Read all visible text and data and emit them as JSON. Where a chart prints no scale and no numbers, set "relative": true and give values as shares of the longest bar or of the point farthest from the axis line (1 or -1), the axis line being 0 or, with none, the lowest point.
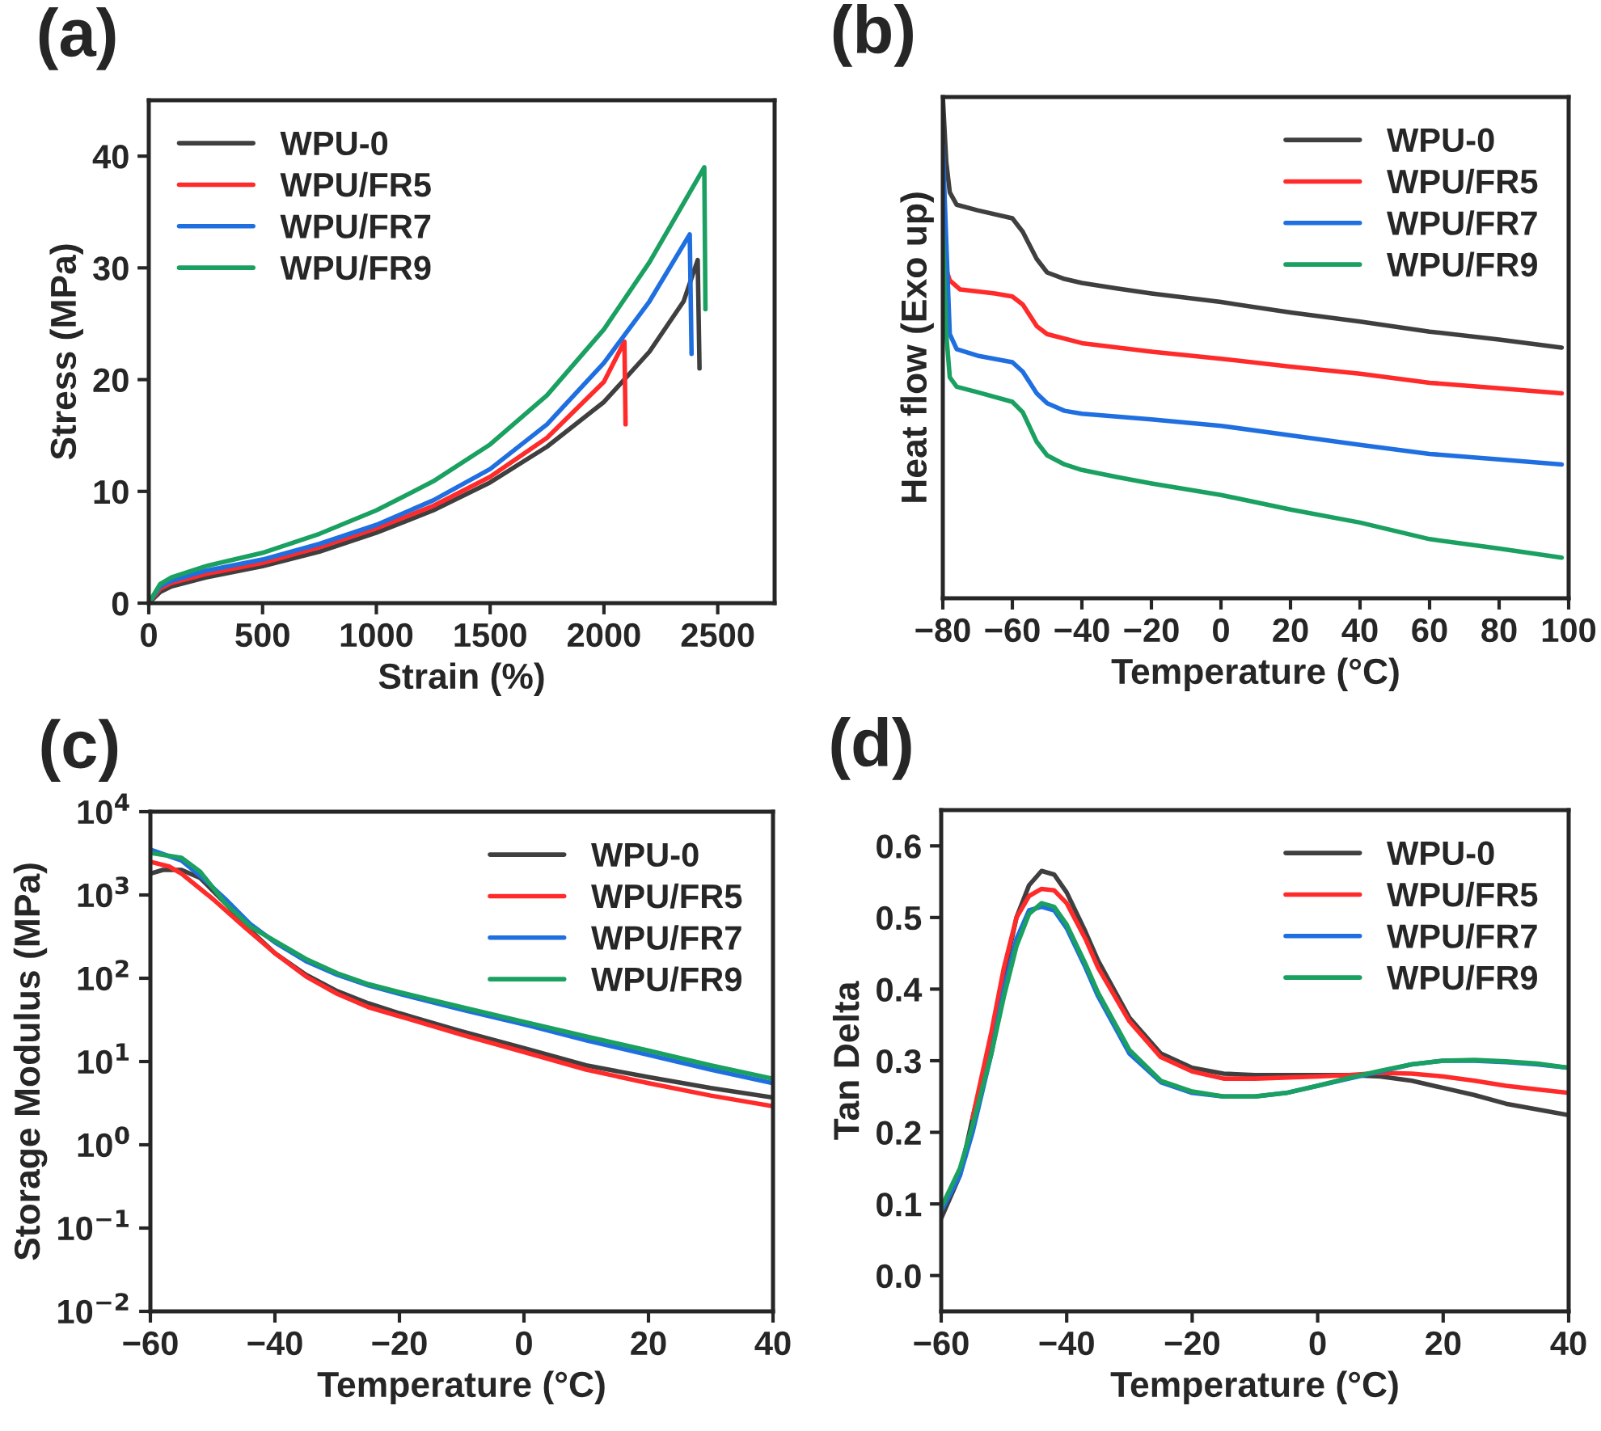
{
  "chart_data": [
    {
      "type": "line",
      "title": "(a)",
      "xlabel": "Strain (%)",
      "ylabel": "Stress (MPa)",
      "xlim": [
        0,
        2750
      ],
      "xticks": [
        0,
        500,
        1000,
        1500,
        2000,
        2500
      ],
      "ylim": [
        0,
        45
      ],
      "yticks": [
        0,
        10,
        20,
        30,
        40
      ],
      "legend": "top left",
      "grid": false,
      "series": [
        {
          "name": "WPU-0",
          "color": "#3f3f3f",
          "x": [
            0,
            50,
            100,
            250,
            500,
            750,
            1000,
            1250,
            1500,
            1750,
            2000,
            2200,
            2350,
            2412,
            2420
          ],
          "values": [
            0,
            1,
            1.5,
            2.3,
            3.3,
            4.6,
            6.3,
            8.3,
            10.8,
            14,
            18,
            22.5,
            27,
            30.7,
            21
          ]
        },
        {
          "name": "WPU/FR5",
          "color": "#ff2a2a",
          "x": [
            0,
            50,
            100,
            250,
            500,
            750,
            1000,
            1250,
            1500,
            1750,
            2000,
            2090,
            2095
          ],
          "values": [
            0,
            1.3,
            1.8,
            2.6,
            3.6,
            5,
            6.7,
            8.7,
            11.3,
            14.8,
            19.8,
            23.4,
            16
          ]
        },
        {
          "name": "WPU/FR7",
          "color": "#1f6fe0",
          "x": [
            0,
            50,
            100,
            250,
            500,
            750,
            1000,
            1250,
            1500,
            1750,
            2000,
            2200,
            2377,
            2385
          ],
          "values": [
            0,
            1.5,
            2,
            2.9,
            3.9,
            5.3,
            7,
            9.2,
            12,
            16,
            21.5,
            27,
            33,
            22.3
          ]
        },
        {
          "name": "WPU/FR9",
          "color": "#1aa060",
          "x": [
            0,
            50,
            100,
            250,
            500,
            750,
            1000,
            1250,
            1500,
            1750,
            2000,
            2200,
            2441,
            2446
          ],
          "values": [
            0,
            1.7,
            2.3,
            3.3,
            4.5,
            6.2,
            8.3,
            10.9,
            14.2,
            18.6,
            24.5,
            30.5,
            39,
            26.3
          ]
        }
      ]
    },
    {
      "type": "line",
      "title": "(b)",
      "xlabel": "Temperature (°C)",
      "ylabel": "Heat flow (Exo up)",
      "relative": true,
      "tick_labels": "x",
      "xlim": [
        -80,
        100
      ],
      "xticks": [
        {
          "value": -80,
          "label": "−80"
        },
        {
          "value": -60,
          "label": "−60"
        },
        {
          "value": -40,
          "label": "−40"
        },
        {
          "value": -20,
          "label": "−20"
        },
        0,
        20,
        40,
        60,
        80,
        100
      ],
      "legend": "top right",
      "grid": false,
      "series": [
        {
          "name": "WPU-0",
          "color": "#3f3f3f",
          "x": [
            -80,
            -79,
            -78,
            -76,
            -70,
            -60,
            -57,
            -53,
            -50,
            -45,
            -40,
            -30,
            -20,
            0,
            20,
            40,
            60,
            80,
            98
          ],
          "values": [
            1.0,
            0.87,
            0.81,
            0.785,
            0.774,
            0.758,
            0.731,
            0.677,
            0.65,
            0.637,
            0.629,
            0.618,
            0.608,
            0.591,
            0.57,
            0.552,
            0.532,
            0.516,
            0.5
          ]
        },
        {
          "name": "WPU/FR5",
          "color": "#ff2a2a",
          "x": [
            -79,
            -78,
            -75,
            -65,
            -60,
            -57,
            -53,
            -50,
            -40,
            -20,
            0,
            20,
            40,
            60,
            80,
            98
          ],
          "values": [
            0.656,
            0.634,
            0.616,
            0.608,
            0.602,
            0.586,
            0.543,
            0.527,
            0.509,
            0.492,
            0.478,
            0.462,
            0.448,
            0.43,
            0.419,
            0.409
          ]
        },
        {
          "name": "WPU/FR7",
          "color": "#1f6fe0",
          "x": [
            -80,
            -79,
            -78,
            -76,
            -70,
            -60,
            -57,
            -53,
            -50,
            -45,
            -40,
            -20,
            0,
            20,
            40,
            60,
            80,
            98
          ],
          "values": [
            0.903,
            0.71,
            0.527,
            0.497,
            0.484,
            0.471,
            0.452,
            0.409,
            0.389,
            0.374,
            0.368,
            0.357,
            0.344,
            0.325,
            0.306,
            0.288,
            0.277,
            0.267
          ]
        },
        {
          "name": "WPU/FR9",
          "color": "#1aa060",
          "x": [
            -80,
            -79,
            -78,
            -76,
            -70,
            -60,
            -57,
            -53,
            -50,
            -45,
            -40,
            -30,
            -20,
            0,
            20,
            40,
            60,
            80,
            98
          ],
          "values": [
            0.737,
            0.527,
            0.441,
            0.422,
            0.411,
            0.392,
            0.371,
            0.312,
            0.285,
            0.267,
            0.256,
            0.242,
            0.229,
            0.206,
            0.177,
            0.151,
            0.118,
            0.099,
            0.081
          ]
        }
      ]
    },
    {
      "type": "line",
      "title": "(c)",
      "xlabel": "Temperature (°C)",
      "ylabel": "Storage Modulus (MPa)",
      "log": "y",
      "xlim": [
        -60,
        40
      ],
      "xticks": [
        {
          "value": -60,
          "label": "−60"
        },
        {
          "value": -40,
          "label": "−40"
        },
        {
          "value": -20,
          "label": "−20"
        },
        0,
        20,
        40
      ],
      "ylim": [
        0.01,
        10000
      ],
      "yticks": [
        {
          "value": 0.01,
          "label": "10$^{−2}$"
        },
        {
          "value": 0.1,
          "label": "10$^{−1}$"
        },
        {
          "value": 1,
          "label": "10$^{0}$"
        },
        {
          "value": 10,
          "label": "10$^{1}$"
        },
        {
          "value": 100,
          "label": "10$^{2}$"
        },
        {
          "value": 1000,
          "label": "10$^{3}$"
        },
        {
          "value": 10000,
          "label": "10$^{4}$"
        }
      ],
      "legend": "top right",
      "grid": false,
      "series": [
        {
          "name": "WPU-0",
          "color": "#3f3f3f",
          "x": [
            -60,
            -58,
            -55,
            -52,
            -48,
            -44,
            -40,
            -35,
            -30,
            -25,
            -20,
            -10,
            0,
            10,
            20,
            30,
            40
          ],
          "values": [
            1800,
            2000,
            2000,
            1600,
            800,
            380,
            200,
            110,
            70,
            50,
            38,
            23,
            14.5,
            9,
            6.5,
            4.8,
            3.7
          ]
        },
        {
          "name": "WPU/FR5",
          "color": "#ff2a2a",
          "x": [
            -60,
            -57,
            -55,
            -50,
            -45,
            -40,
            -35,
            -30,
            -25,
            -20,
            -10,
            0,
            10,
            20,
            30,
            40
          ],
          "values": [
            2500,
            2200,
            1800,
            900,
            420,
            200,
            105,
            65,
            45,
            35,
            21,
            13,
            8,
            5.5,
            3.9,
            2.9
          ]
        },
        {
          "name": "WPU/FR7",
          "color": "#1f6fe0",
          "x": [
            -60,
            -55,
            -52,
            -48,
            -44,
            -40,
            -35,
            -30,
            -25,
            -20,
            -10,
            0,
            10,
            20,
            30,
            40
          ],
          "values": [
            3500,
            2600,
            1700,
            900,
            450,
            270,
            160,
            110,
            82,
            65,
            42,
            28,
            18,
            12,
            8,
            5.5
          ]
        },
        {
          "name": "WPU/FR9",
          "color": "#1aa060",
          "x": [
            -60,
            -55,
            -52,
            -48,
            -44,
            -40,
            -35,
            -30,
            -25,
            -20,
            -10,
            0,
            10,
            20,
            30,
            40
          ],
          "values": [
            3200,
            2800,
            1900,
            800,
            420,
            280,
            170,
            115,
            85,
            68,
            45,
            30,
            20,
            13.5,
            9,
            6.2
          ]
        }
      ]
    },
    {
      "type": "line",
      "title": "(d)",
      "xlabel": "Temperature (°C)",
      "ylabel": "Tan Delta",
      "xlim": [
        -60,
        40
      ],
      "xticks": [
        {
          "value": -60,
          "label": "−60"
        },
        {
          "value": -40,
          "label": "−40"
        },
        {
          "value": -20,
          "label": "−20"
        },
        0,
        20,
        40
      ],
      "ylim": [
        -0.05,
        0.65
      ],
      "yticks": [
        {
          "value": 0,
          "label": "0.0"
        },
        0.1,
        0.2,
        0.3,
        0.4,
        0.5,
        0.6
      ],
      "legend": "top right",
      "grid": false,
      "series": [
        {
          "name": "WPU-0",
          "color": "#3f3f3f",
          "x": [
            -60,
            -57,
            -55,
            -52,
            -50,
            -48,
            -46,
            -44,
            -42,
            -40,
            -37,
            -35,
            -30,
            -25,
            -20,
            -15,
            -10,
            0,
            5,
            10,
            15,
            20,
            25,
            30,
            35,
            40
          ],
          "values": [
            0.08,
            0.14,
            0.22,
            0.33,
            0.42,
            0.5,
            0.545,
            0.565,
            0.56,
            0.535,
            0.48,
            0.44,
            0.36,
            0.31,
            0.29,
            0.282,
            0.28,
            0.28,
            0.28,
            0.278,
            0.272,
            0.262,
            0.252,
            0.24,
            0.232,
            0.224
          ]
        },
        {
          "name": "WPU/FR5",
          "color": "#ff2a2a",
          "x": [
            -55,
            -52,
            -50,
            -48,
            -46,
            -44,
            -42,
            -40,
            -37,
            -35,
            -30,
            -25,
            -20,
            -15,
            -10,
            0,
            5,
            10,
            15,
            20,
            25,
            30,
            35,
            40
          ],
          "values": [
            0.22,
            0.34,
            0.43,
            0.5,
            0.53,
            0.54,
            0.538,
            0.52,
            0.47,
            0.43,
            0.355,
            0.305,
            0.285,
            0.275,
            0.275,
            0.278,
            0.28,
            0.283,
            0.282,
            0.278,
            0.272,
            0.265,
            0.26,
            0.255
          ]
        },
        {
          "name": "WPU/FR7",
          "color": "#1f6fe0",
          "x": [
            -60,
            -57,
            -55,
            -52,
            -50,
            -48,
            -46,
            -44,
            -42,
            -40,
            -37,
            -35,
            -30,
            -25,
            -20,
            -15,
            -10,
            -5,
            0,
            5,
            10,
            15,
            20,
            25,
            30,
            35,
            40
          ],
          "values": [
            0.09,
            0.14,
            0.2,
            0.31,
            0.4,
            0.47,
            0.51,
            0.515,
            0.51,
            0.485,
            0.43,
            0.39,
            0.31,
            0.27,
            0.255,
            0.25,
            0.25,
            0.255,
            0.265,
            0.275,
            0.285,
            0.295,
            0.3,
            0.3,
            0.298,
            0.295,
            0.29
          ]
        },
        {
          "name": "WPU/FR9",
          "color": "#1aa060",
          "x": [
            -60,
            -57,
            -55,
            -52,
            -50,
            -48,
            -46,
            -44,
            -42,
            -40,
            -37,
            -35,
            -30,
            -25,
            -20,
            -15,
            -10,
            -5,
            0,
            5,
            10,
            15,
            20,
            25,
            30,
            35,
            40
          ],
          "values": [
            0.095,
            0.15,
            0.21,
            0.31,
            0.39,
            0.46,
            0.505,
            0.52,
            0.515,
            0.49,
            0.435,
            0.395,
            0.315,
            0.272,
            0.257,
            0.25,
            0.25,
            0.255,
            0.265,
            0.276,
            0.286,
            0.295,
            0.3,
            0.301,
            0.299,
            0.296,
            0.29
          ]
        }
      ]
    }
  ]
}
